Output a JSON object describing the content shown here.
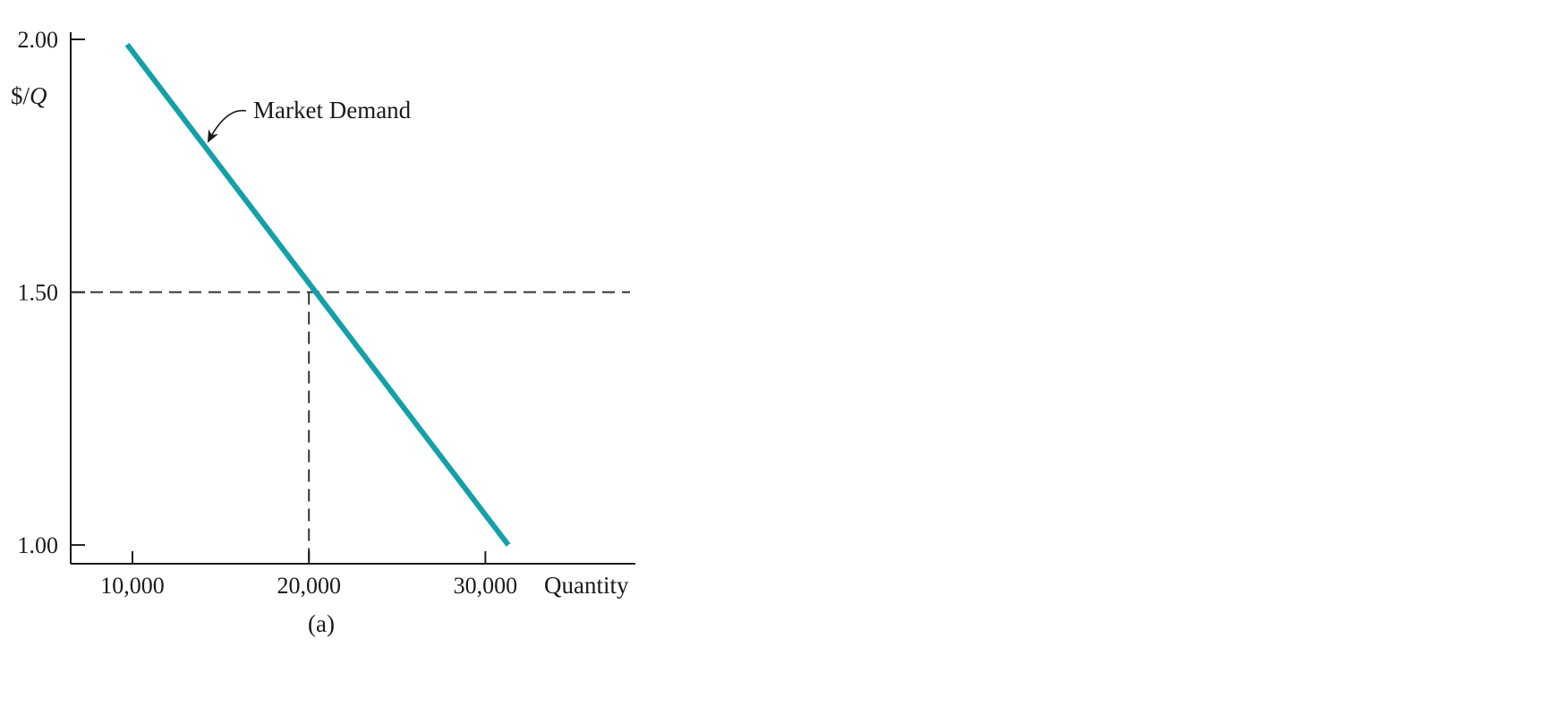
{
  "chart_data": {
    "type": "line",
    "title": "",
    "caption": "(a)",
    "xlabel": "Quantity",
    "ylabel_prefix": "$/",
    "ylabel_var": "Q",
    "xlim": [
      6500,
      38500
    ],
    "ylim": [
      0.963,
      2.0
    ],
    "x_ticks": [
      10000,
      20000,
      30000
    ],
    "x_tick_labels": [
      "10,000",
      "20,000",
      "30,000"
    ],
    "y_ticks": [
      1.0,
      1.5,
      2.0
    ],
    "y_tick_labels": [
      "1.00",
      "1.50",
      "2.00"
    ],
    "grid": false,
    "legend": "none",
    "series": [
      {
        "name": "Market Demand",
        "color": "#14a0a8",
        "x": [
          9700,
          31300
        ],
        "y": [
          1.99,
          1.0
        ]
      }
    ],
    "reference_lines": {
      "horizontal_y": 1.5,
      "vertical_x": 20000,
      "style": "dashed"
    },
    "annotation": {
      "text": "Market Demand",
      "points_to_x": 14200,
      "points_to_y": 1.795
    }
  }
}
